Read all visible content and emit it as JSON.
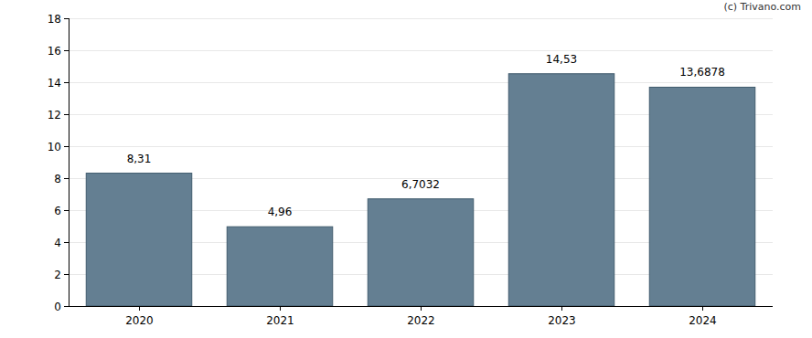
{
  "chart_data": {
    "type": "bar",
    "annotations": [
      "(c) Trivano.com"
    ],
    "categories": [
      "2020",
      "2021",
      "2022",
      "2023",
      "2024"
    ],
    "values": [
      8.31,
      4.96,
      6.7032,
      14.53,
      13.6878
    ],
    "value_labels": [
      "8,31",
      "4,96",
      "6,7032",
      "14,53",
      "13,6878"
    ],
    "color": "#647f92",
    "ylim": [
      0,
      18
    ],
    "yticks": [
      0,
      2,
      4,
      6,
      8,
      10,
      12,
      14,
      16,
      18
    ],
    "grid": true,
    "data_labels": true
  }
}
